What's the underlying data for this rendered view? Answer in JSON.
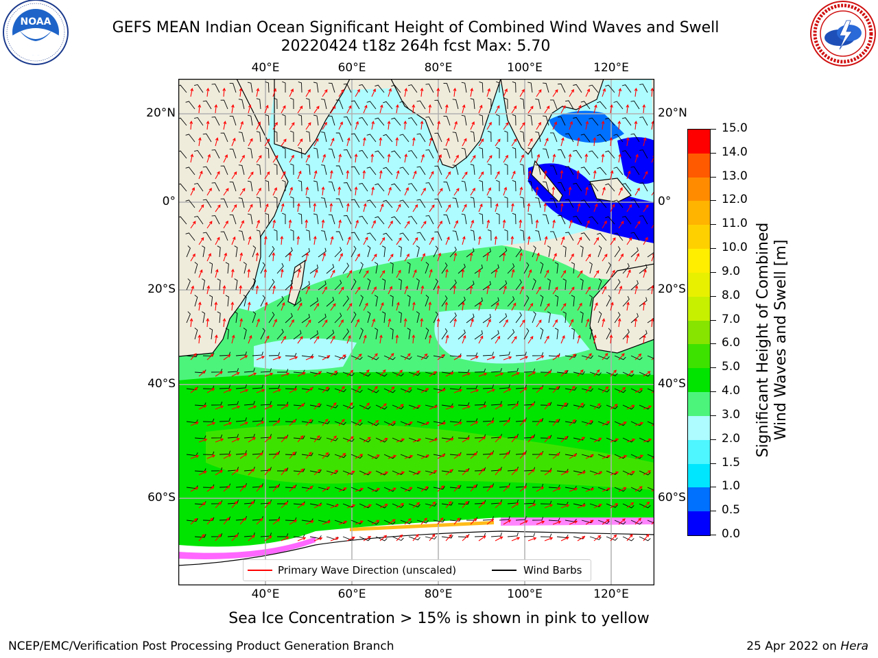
{
  "title": {
    "line1": "GEFS MEAN Indian Ocean Significant Height of Combined Wind Waves and Swell",
    "line2": "20220424 t18z 264h fcst   Max: 5.70"
  },
  "logos": {
    "noaa": {
      "text": "NOAA",
      "ring_text": "NATIONAL OCEANIC AND ATMOSPHERIC ADMINISTRATION · U.S. DEPARTMENT OF COMMERCE"
    },
    "nws": {
      "ring_text": "NATIONAL WEATHER SERVICE"
    }
  },
  "map": {
    "lon_ticks_top": [
      "40°E",
      "60°E",
      "80°E",
      "100°E",
      "120°E"
    ],
    "lon_ticks_bottom": [
      "40°E",
      "60°E",
      "80°E",
      "100°E",
      "120°E"
    ],
    "lat_ticks_left": [
      "20°N",
      "0°",
      "20°S",
      "40°S",
      "60°S"
    ],
    "lat_ticks_right": [
      "20°N",
      "0°",
      "20°S",
      "40°S",
      "60°S"
    ],
    "land_color": "#efecdc",
    "gridline_color": "#b0b0b0"
  },
  "legend": {
    "primary_wave": "Primary Wave Direction (unscaled)",
    "wind_barbs": "Wind Barbs",
    "arrow_color": "#ff0000",
    "barb_color": "#000000"
  },
  "colorbar": {
    "levels": [
      "0.0",
      "0.5",
      "1.0",
      "1.5",
      "2.0",
      "3.0",
      "4.0",
      "5.0",
      "6.0",
      "7.0",
      "8.0",
      "9.0",
      "10.0",
      "11.0",
      "12.0",
      "13.0",
      "14.0",
      "15.0"
    ],
    "colors": [
      "#0000ff",
      "#0070ff",
      "#00e6ff",
      "#4ef6ff",
      "#aefcff",
      "#4cf47c",
      "#00e400",
      "#3ee200",
      "#86e400",
      "#c6f000",
      "#e8f000",
      "#ffee00",
      "#ffd000",
      "#ffb400",
      "#ff8c00",
      "#ff5a00",
      "#ff0000"
    ],
    "label_line1": "Significant Height of Combined",
    "label_line2": "Wind Waves and Swell [m]"
  },
  "notes": {
    "sea_ice": "Sea Ice Concentration > 15% is shown in pink to yellow",
    "branch": "NCEP/EMC/Verification Post Processing Product Generation Branch",
    "date_prefix": "25 Apr 2022 on ",
    "date_machine": "Hera"
  }
}
